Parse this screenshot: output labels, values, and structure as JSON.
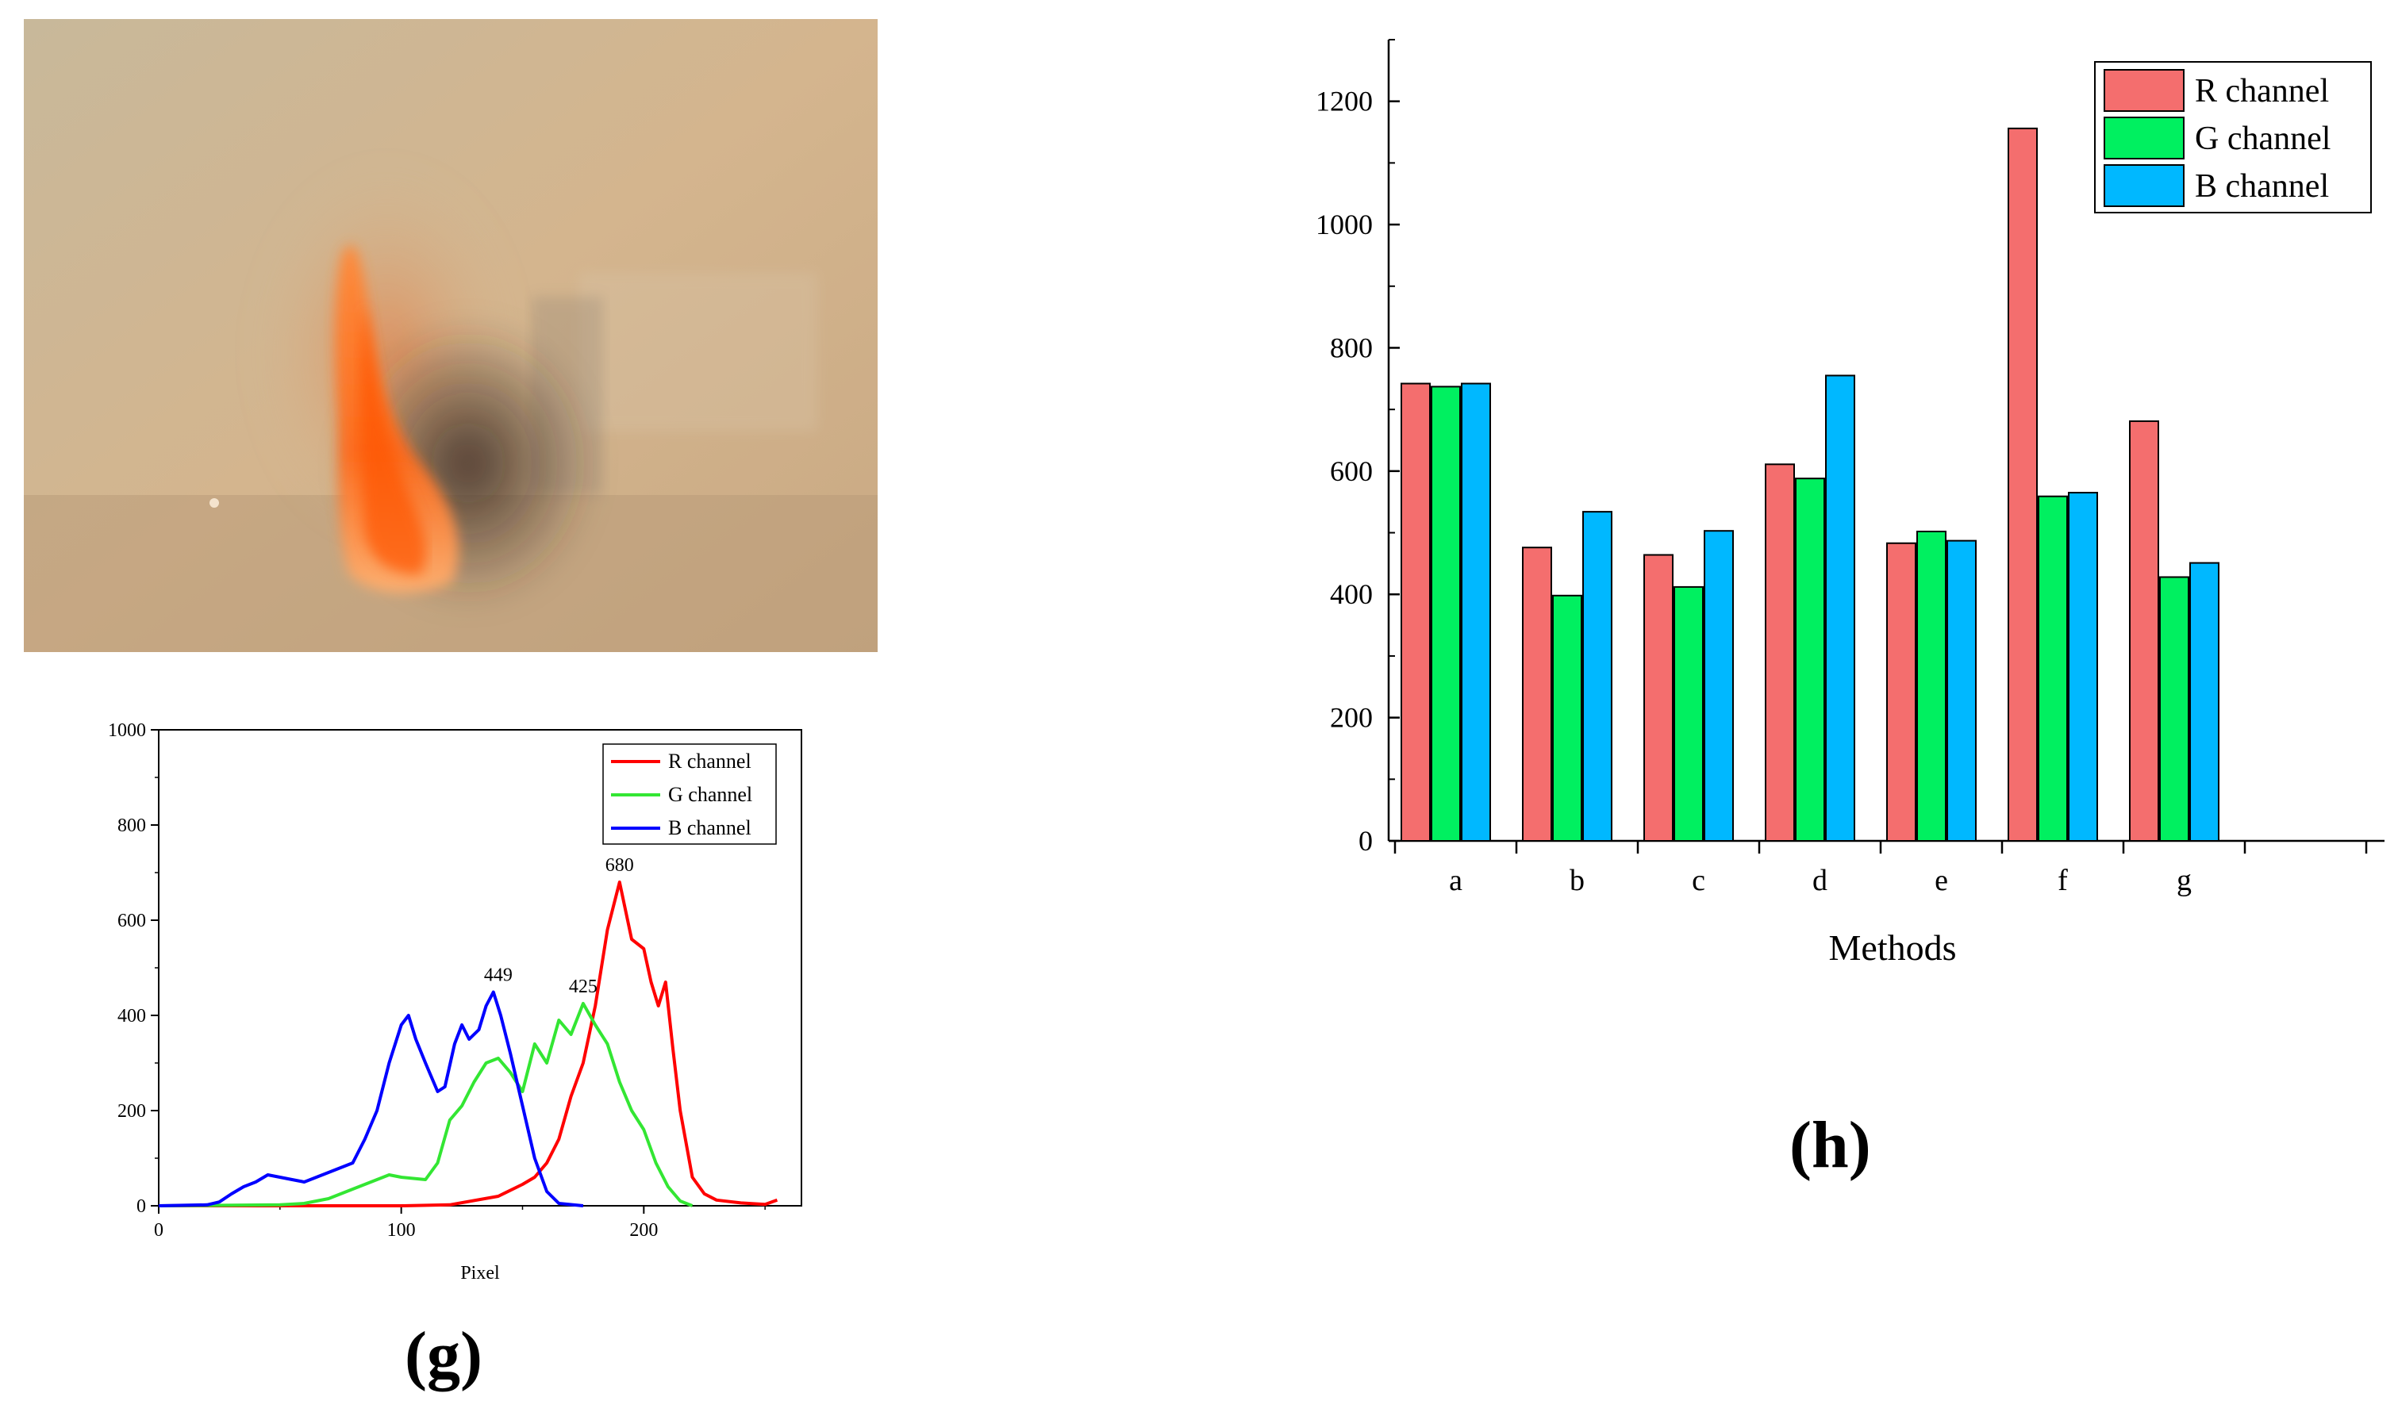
{
  "panels": {
    "g_label": "(g)",
    "h_label": "(h)"
  },
  "photo": {
    "description_icon": "flame-photo"
  },
  "colors": {
    "r_line": "#ff0000",
    "g_line": "#33e633",
    "b_line": "#0000ff",
    "r_bar": "#f46e6e",
    "g_bar": "#00f060",
    "b_bar": "#00b8ff"
  },
  "chart_data": [
    {
      "type": "line",
      "title": "",
      "xlabel": "Pixel",
      "ylabel": "",
      "xlim": [
        0,
        265
      ],
      "ylim": [
        0,
        1000
      ],
      "xticks": [
        0,
        100,
        200
      ],
      "yticks": [
        0,
        200,
        400,
        600,
        800,
        1000
      ],
      "legend_position": "top-right",
      "grid": false,
      "series": [
        {
          "name": "R channel",
          "color": "#ff0000",
          "x": [
            0,
            100,
            120,
            140,
            150,
            155,
            160,
            165,
            170,
            175,
            180,
            185,
            190,
            195,
            200,
            203,
            206,
            209,
            212,
            215,
            220,
            225,
            230,
            240,
            250,
            255
          ],
          "y": [
            0,
            0,
            2,
            20,
            45,
            60,
            90,
            140,
            230,
            300,
            420,
            580,
            680,
            560,
            540,
            470,
            420,
            470,
            330,
            200,
            60,
            25,
            12,
            6,
            3,
            12
          ]
        },
        {
          "name": "G channel",
          "color": "#33e633",
          "x": [
            0,
            50,
            60,
            70,
            80,
            90,
            95,
            100,
            110,
            115,
            120,
            125,
            130,
            135,
            140,
            145,
            150,
            155,
            160,
            165,
            170,
            175,
            180,
            185,
            190,
            195,
            200,
            205,
            210,
            215,
            220
          ],
          "y": [
            0,
            2,
            5,
            15,
            35,
            55,
            65,
            60,
            55,
            90,
            180,
            210,
            260,
            300,
            310,
            280,
            240,
            340,
            300,
            390,
            360,
            425,
            380,
            340,
            260,
            200,
            160,
            90,
            40,
            10,
            0
          ]
        },
        {
          "name": "B channel",
          "color": "#0000ff",
          "x": [
            0,
            20,
            25,
            30,
            35,
            40,
            45,
            50,
            55,
            60,
            70,
            80,
            85,
            90,
            95,
            100,
            103,
            106,
            110,
            115,
            118,
            122,
            125,
            128,
            132,
            135,
            138,
            141,
            145,
            150,
            155,
            160,
            165,
            175
          ],
          "y": [
            0,
            2,
            8,
            25,
            40,
            50,
            65,
            60,
            55,
            50,
            70,
            90,
            140,
            200,
            300,
            380,
            400,
            350,
            300,
            240,
            250,
            340,
            380,
            350,
            370,
            420,
            449,
            400,
            320,
            210,
            100,
            30,
            5,
            0
          ]
        }
      ],
      "annotations": [
        {
          "x": 190,
          "y": 680,
          "text": "680"
        },
        {
          "x": 140,
          "y": 449,
          "text": "449"
        },
        {
          "x": 175,
          "y": 425,
          "text": "425"
        }
      ]
    },
    {
      "type": "bar",
      "title": "",
      "xlabel": "Methods",
      "ylabel": "",
      "ylim": [
        0,
        1300
      ],
      "yticks": [
        0,
        200,
        400,
        600,
        800,
        1000,
        1200
      ],
      "categories": [
        "a",
        "b",
        "c",
        "d",
        "e",
        "f",
        "g"
      ],
      "legend_position": "top-right",
      "grid": false,
      "series": [
        {
          "name": "R channel",
          "color": "#f46e6e",
          "values": [
            742,
            476,
            464,
            611,
            483,
            1156,
            681
          ]
        },
        {
          "name": "G channel",
          "color": "#00f060",
          "values": [
            737,
            398,
            412,
            588,
            502,
            559,
            428
          ]
        },
        {
          "name": "B channel",
          "color": "#00b8ff",
          "values": [
            742,
            534,
            503,
            755,
            487,
            565,
            451
          ]
        }
      ]
    }
  ]
}
